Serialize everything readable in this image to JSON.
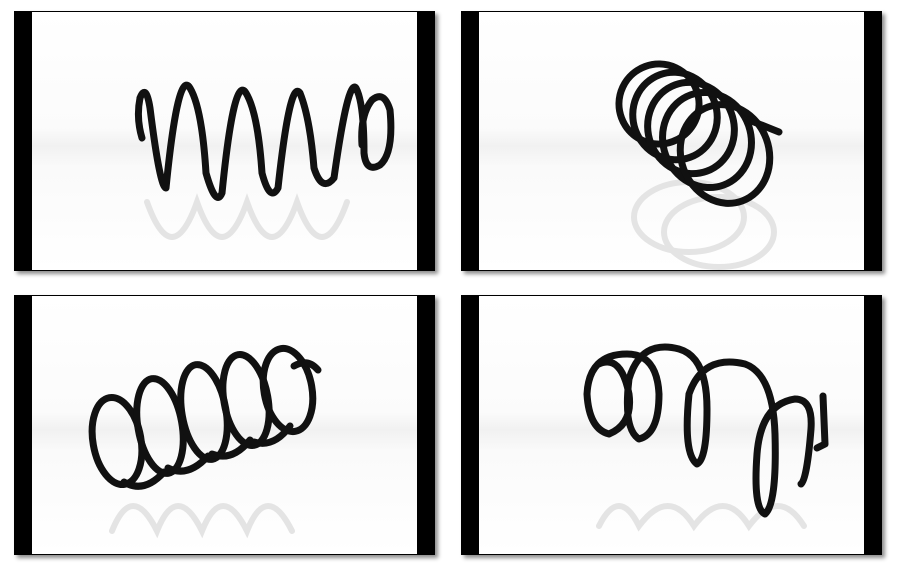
{
  "gallery": {
    "panels": [
      {
        "id": "p1",
        "subject": "coil-spring",
        "view": "side"
      },
      {
        "id": "p2",
        "subject": "coil-spring",
        "view": "end-angle"
      },
      {
        "id": "p3",
        "subject": "coil-spring",
        "view": "three-quarter"
      },
      {
        "id": "p4",
        "subject": "coil-spring",
        "view": "rear-angle"
      }
    ]
  },
  "colors": {
    "frame": "#000000",
    "spring": "#111111",
    "background": "#ffffff"
  }
}
